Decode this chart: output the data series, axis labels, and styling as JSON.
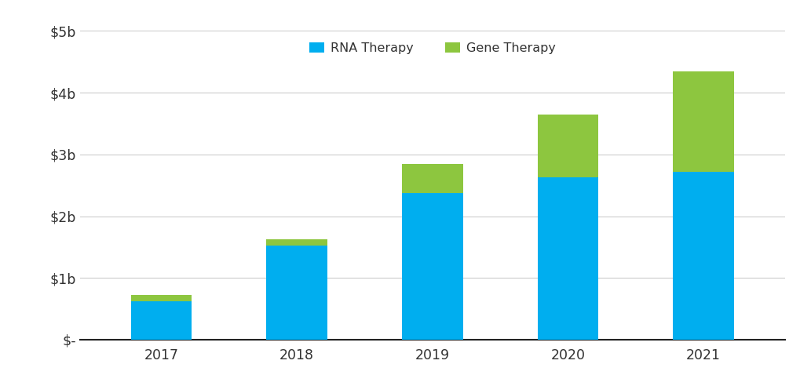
{
  "years": [
    "2017",
    "2018",
    "2019",
    "2020",
    "2021"
  ],
  "rna_values": [
    0.62,
    1.53,
    2.38,
    2.63,
    2.72
  ],
  "gene_values": [
    0.1,
    0.09,
    0.47,
    1.02,
    1.62
  ],
  "rna_color": "#00AEEF",
  "gene_color": "#8DC63F",
  "background_color": "#FFFFFF",
  "ylim": [
    0,
    5.0
  ],
  "yticks": [
    0,
    1,
    2,
    3,
    4,
    5
  ],
  "ytick_labels": [
    "$-",
    "$1b",
    "$2b",
    "$3b",
    "$4b",
    "$5b"
  ],
  "legend_rna": "RNA Therapy",
  "legend_gene": "Gene Therapy",
  "bar_width": 0.45,
  "legend_fontsize": 11.5,
  "tick_fontsize": 12.5,
  "grid_color": "#CCCCCC",
  "text_color": "#333333"
}
